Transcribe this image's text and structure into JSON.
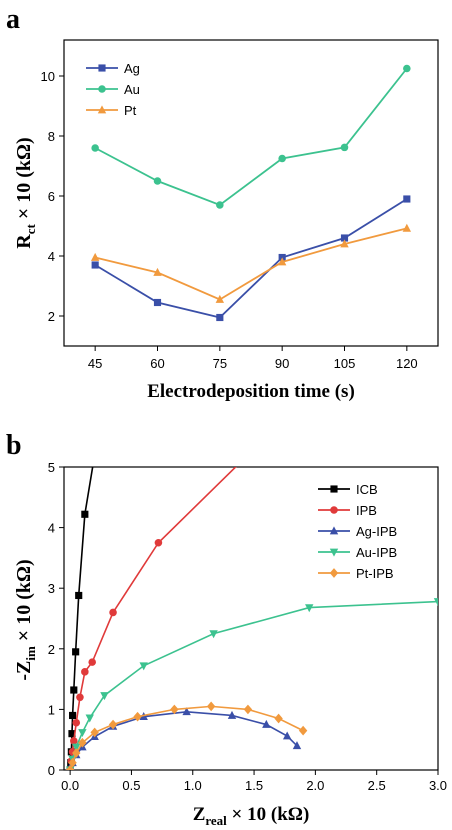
{
  "chart_data": [
    {
      "type": "line",
      "panel_label": "a",
      "xlabel": "Electrodeposition time (s)",
      "ylabel": {
        "main": "R",
        "sub": "ct",
        "tail": " × 10 (kΩ)"
      },
      "x": [
        45,
        60,
        75,
        90,
        105,
        120
      ],
      "xticks": [
        "45",
        "60",
        "75",
        "90",
        "105",
        "120"
      ],
      "yticks": [
        2,
        4,
        6,
        8,
        10
      ],
      "xlim": [
        37.5,
        127.5
      ],
      "ylim": [
        1.0,
        11.2
      ],
      "grid": false,
      "legend_position": "top-left",
      "series": [
        {
          "name": "Ag",
          "color": "#3a4fa8",
          "marker": "square",
          "values": [
            3.7,
            2.45,
            1.95,
            3.95,
            4.6,
            5.9
          ]
        },
        {
          "name": "Au",
          "color": "#3cc28f",
          "marker": "circle",
          "values": [
            7.6,
            6.5,
            5.7,
            7.25,
            7.62,
            10.25
          ]
        },
        {
          "name": "Pt",
          "color": "#f19a3e",
          "marker": "triangle-up",
          "values": [
            3.95,
            3.45,
            2.55,
            3.8,
            4.4,
            4.92
          ]
        }
      ]
    },
    {
      "type": "line",
      "panel_label": "b",
      "xlabel": {
        "main": "Z",
        "sub": "real",
        "tail": " × 10 (kΩ)"
      },
      "ylabel": {
        "main": "-Z",
        "sub": "im",
        "tail": " × 10 (kΩ)"
      },
      "xticks": [
        0.0,
        0.5,
        1.0,
        1.5,
        2.0,
        2.5,
        3.0
      ],
      "xtick_labels": [
        "0.0",
        "0.5",
        "1.0",
        "1.5",
        "2.0",
        "2.5",
        "3.0"
      ],
      "yticks": [
        0,
        1,
        2,
        3,
        4,
        5
      ],
      "ytick_labels": [
        "0",
        "1",
        "2",
        "3",
        "4",
        "5"
      ],
      "xlim": [
        -0.05,
        3.0
      ],
      "ylim": [
        0,
        5
      ],
      "grid": false,
      "legend_position": "top-right",
      "series": [
        {
          "name": "ICB",
          "color": "#000000",
          "marker": "square",
          "points": [
            [
              0.0,
              0.0
            ],
            [
              0.005,
              0.12
            ],
            [
              0.01,
              0.3
            ],
            [
              0.015,
              0.6
            ],
            [
              0.02,
              0.9
            ],
            [
              0.03,
              1.32
            ],
            [
              0.045,
              1.95
            ],
            [
              0.07,
              2.88
            ],
            [
              0.12,
              4.22
            ],
            [
              0.2,
              5.2
            ]
          ]
        },
        {
          "name": "IPB",
          "color": "#e03a3a",
          "marker": "circle",
          "points": [
            [
              0.0,
              0.0
            ],
            [
              0.01,
              0.15
            ],
            [
              0.02,
              0.3
            ],
            [
              0.03,
              0.48
            ],
            [
              0.05,
              0.78
            ],
            [
              0.08,
              1.2
            ],
            [
              0.12,
              1.62
            ],
            [
              0.18,
              1.78
            ],
            [
              0.35,
              2.6
            ],
            [
              0.72,
              3.75
            ],
            [
              1.4,
              5.1
            ]
          ]
        },
        {
          "name": "Ag-IPB",
          "color": "#3a4fa8",
          "marker": "triangle-up",
          "points": [
            [
              0.0,
              0.0
            ],
            [
              0.02,
              0.12
            ],
            [
              0.05,
              0.25
            ],
            [
              0.1,
              0.38
            ],
            [
              0.2,
              0.55
            ],
            [
              0.35,
              0.72
            ],
            [
              0.6,
              0.88
            ],
            [
              0.95,
              0.96
            ],
            [
              1.32,
              0.9
            ],
            [
              1.6,
              0.75
            ],
            [
              1.77,
              0.56
            ],
            [
              1.85,
              0.4
            ]
          ]
        },
        {
          "name": "Au-IPB",
          "color": "#3cc28f",
          "marker": "triangle-down",
          "points": [
            [
              0.0,
              0.0
            ],
            [
              0.02,
              0.18
            ],
            [
              0.05,
              0.38
            ],
            [
              0.1,
              0.62
            ],
            [
              0.16,
              0.86
            ],
            [
              0.28,
              1.23
            ],
            [
              0.6,
              1.72
            ],
            [
              1.17,
              2.25
            ],
            [
              1.95,
              2.68
            ],
            [
              3.0,
              2.78
            ]
          ]
        },
        {
          "name": "Pt-IPB",
          "color": "#f19a3e",
          "marker": "diamond",
          "points": [
            [
              0.0,
              0.0
            ],
            [
              0.02,
              0.12
            ],
            [
              0.05,
              0.28
            ],
            [
              0.1,
              0.45
            ],
            [
              0.2,
              0.62
            ],
            [
              0.35,
              0.75
            ],
            [
              0.55,
              0.88
            ],
            [
              0.85,
              1.0
            ],
            [
              1.15,
              1.05
            ],
            [
              1.45,
              1.0
            ],
            [
              1.7,
              0.85
            ],
            [
              1.9,
              0.65
            ]
          ]
        }
      ]
    }
  ]
}
